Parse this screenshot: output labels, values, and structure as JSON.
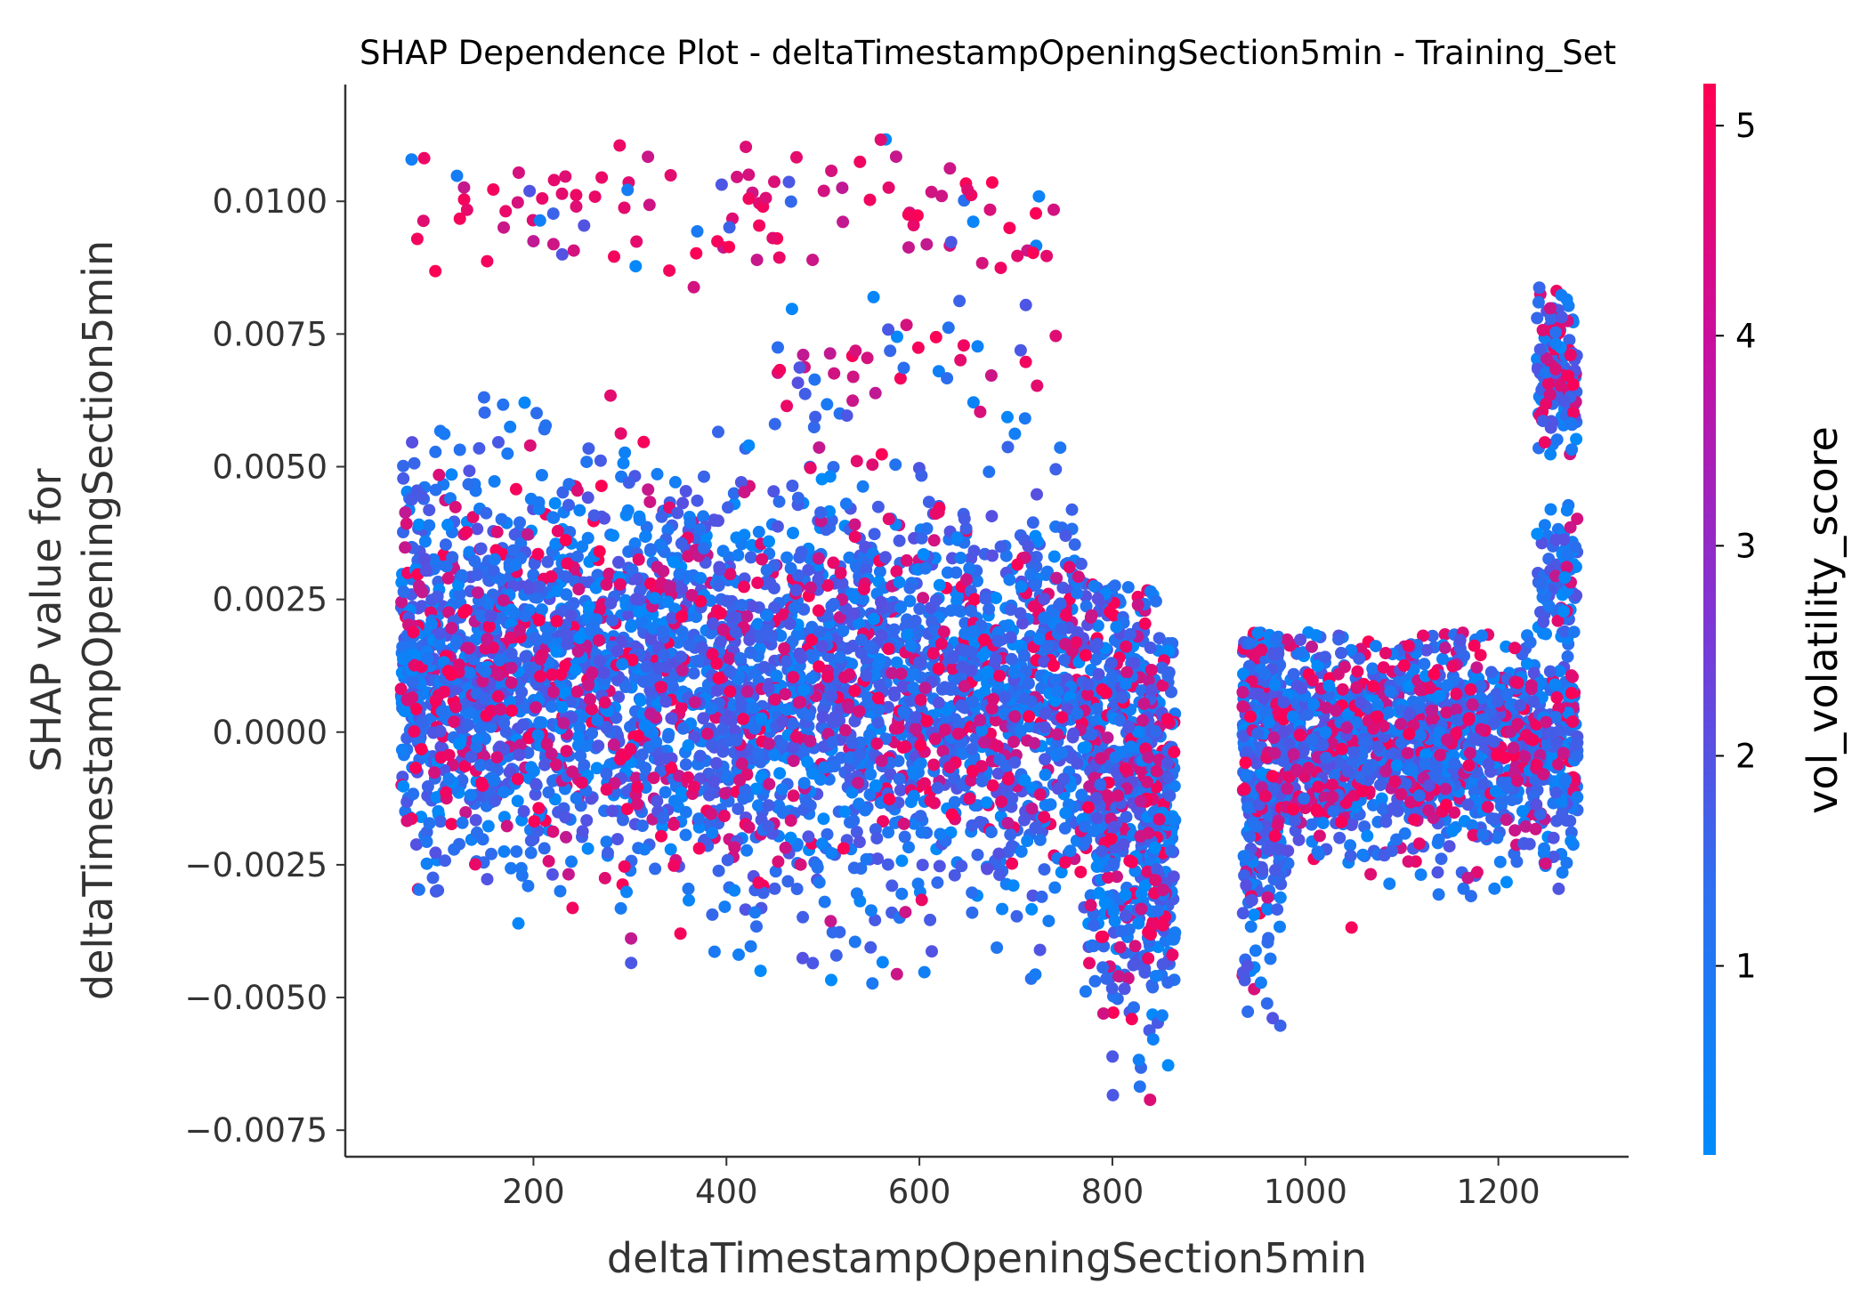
{
  "chart_data": {
    "type": "scatter",
    "title": "SHAP Dependence Plot - deltaTimestampOpeningSection5min - Training_Set",
    "xlabel": "deltaTimestampOpeningSection5min",
    "ylabel_lines": [
      "SHAP value for",
      "deltaTimestampOpeningSection5min"
    ],
    "xlim": [
      5,
      1335
    ],
    "ylim": [
      -0.008,
      0.0122
    ],
    "x_ticks": [
      200,
      400,
      600,
      800,
      1000,
      1200
    ],
    "x_tick_labels": [
      "200",
      "400",
      "600",
      "800",
      "1000",
      "1200"
    ],
    "y_ticks": [
      0.01,
      0.0075,
      0.005,
      0.0025,
      0.0,
      -0.0025,
      -0.005,
      -0.0075
    ],
    "y_tick_labels": [
      "0.0100",
      "0.0075",
      "0.0050",
      "0.0025",
      "0.0000",
      "−0.0025",
      "−0.0050",
      "−0.0075"
    ],
    "colorbar": {
      "label": "vol_volatility_score",
      "range": [
        0.1,
        5.2
      ],
      "ticks": [
        1,
        2,
        3,
        4,
        5
      ],
      "tick_labels": [
        "1",
        "2",
        "3",
        "4",
        "5"
      ],
      "color_low": "#008bfb",
      "color_mid": "#7e35d5",
      "color_high": "#ff0052"
    },
    "clusters": [
      {
        "x_range": [
          62,
          770
        ],
        "y_center": 0.0012,
        "y_spread": 0.0018,
        "y_min": -0.0048,
        "y_max": 0.0066,
        "x_slope": -8e-07,
        "count": 3600,
        "high_color_frac": 0.2
      },
      {
        "x_range": [
          770,
          865
        ],
        "y_center": -0.0005,
        "y_spread": 0.002,
        "y_min": -0.007,
        "y_max": 0.0028,
        "x_slope": -1.5e-05,
        "count": 700,
        "high_color_frac": 0.22
      },
      {
        "x_range": [
          935,
          975
        ],
        "y_center": -0.0005,
        "y_spread": 0.0018,
        "y_min": -0.0062,
        "y_max": 0.0019,
        "x_slope": 0,
        "count": 380,
        "high_color_frac": 0.15
      },
      {
        "x_range": [
          975,
          1282
        ],
        "y_center": -0.0003,
        "y_spread": 0.001,
        "y_min": -0.0045,
        "y_max": 0.0019,
        "x_slope": 0,
        "count": 1400,
        "high_color_frac": 0.22
      },
      {
        "x_range": [
          1240,
          1282
        ],
        "y_center": 0.0068,
        "y_spread": 0.0007,
        "y_min": 0.0052,
        "y_max": 0.0087,
        "x_slope": 0,
        "count": 160,
        "high_color_frac": 0.25
      },
      {
        "x_range": [
          1240,
          1282
        ],
        "y_center": 0.003,
        "y_spread": 0.0008,
        "y_min": 0.0018,
        "y_max": 0.0045,
        "x_slope": 0,
        "count": 80,
        "high_color_frac": 0.15
      },
      {
        "x_range": [
          70,
          740
        ],
        "y_center": 0.0098,
        "y_spread": 0.0006,
        "y_min": 0.0078,
        "y_max": 0.0113,
        "x_slope": 0,
        "count": 110,
        "high_color_frac": 0.8
      },
      {
        "x_range": [
          450,
          760
        ],
        "y_center": 0.007,
        "y_spread": 0.0007,
        "y_min": 0.0058,
        "y_max": 0.0082,
        "x_slope": 0,
        "count": 45,
        "high_color_frac": 0.5
      }
    ]
  }
}
